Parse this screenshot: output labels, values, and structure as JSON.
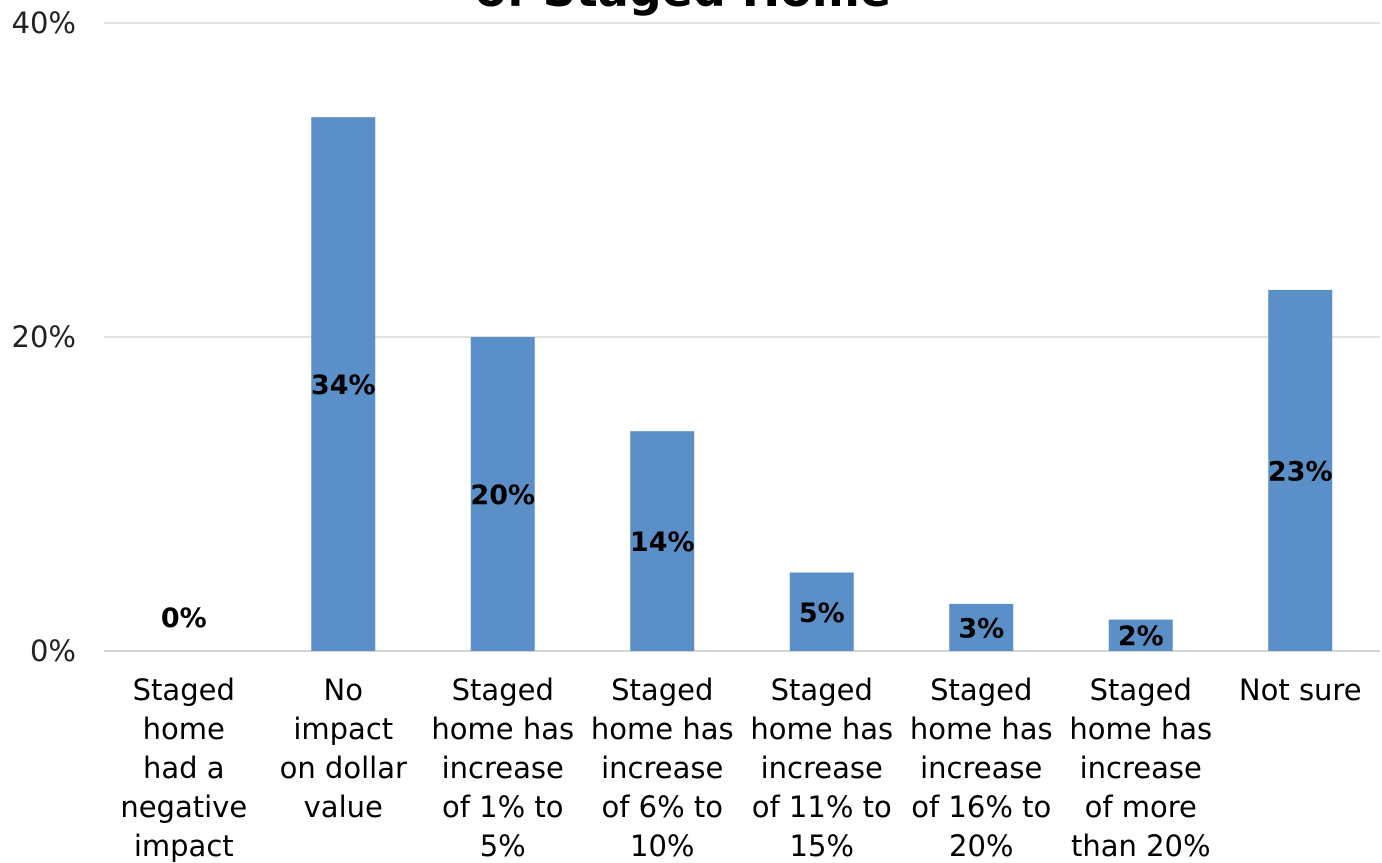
{
  "chart_data": {
    "type": "bar",
    "title": "of Staged Home",
    "categories": [
      "Staged home had a negative impact",
      "No impact on dollar value",
      "Staged home has increase of 1% to 5%",
      "Staged home has increase of 6% to 10%",
      "Staged home has increase of 11% to 15%",
      "Staged home has increase of 16% to 20%",
      "Staged home has increase of more than 20%",
      "Not sure"
    ],
    "category_lines": [
      [
        "Staged",
        "home",
        "had a",
        "negative",
        "impact"
      ],
      [
        "No",
        "impact",
        "on dollar",
        "value"
      ],
      [
        "Staged",
        "home has",
        "increase",
        "of 1% to",
        "5%"
      ],
      [
        "Staged",
        "home has",
        "increase",
        "of 6% to",
        "10%"
      ],
      [
        "Staged",
        "home has",
        "increase",
        "of 11% to",
        "15%"
      ],
      [
        "Staged",
        "home has",
        "increase",
        "of 16% to",
        "20%"
      ],
      [
        "Staged",
        "home has",
        "increase",
        "of more",
        "than 20%"
      ],
      [
        "Not sure"
      ]
    ],
    "values": [
      0,
      34,
      20,
      14,
      5,
      3,
      2,
      23
    ],
    "data_labels": [
      "0%",
      "34%",
      "20%",
      "14%",
      "5%",
      "3%",
      "2%",
      "23%"
    ],
    "yticks": [
      "0%",
      "20%",
      "40%"
    ],
    "ylim": [
      0,
      40
    ],
    "xlabel": "",
    "ylabel": "",
    "grid": true,
    "bar_color": "#5b8fc7",
    "grid_color": "#d9d9d9"
  }
}
